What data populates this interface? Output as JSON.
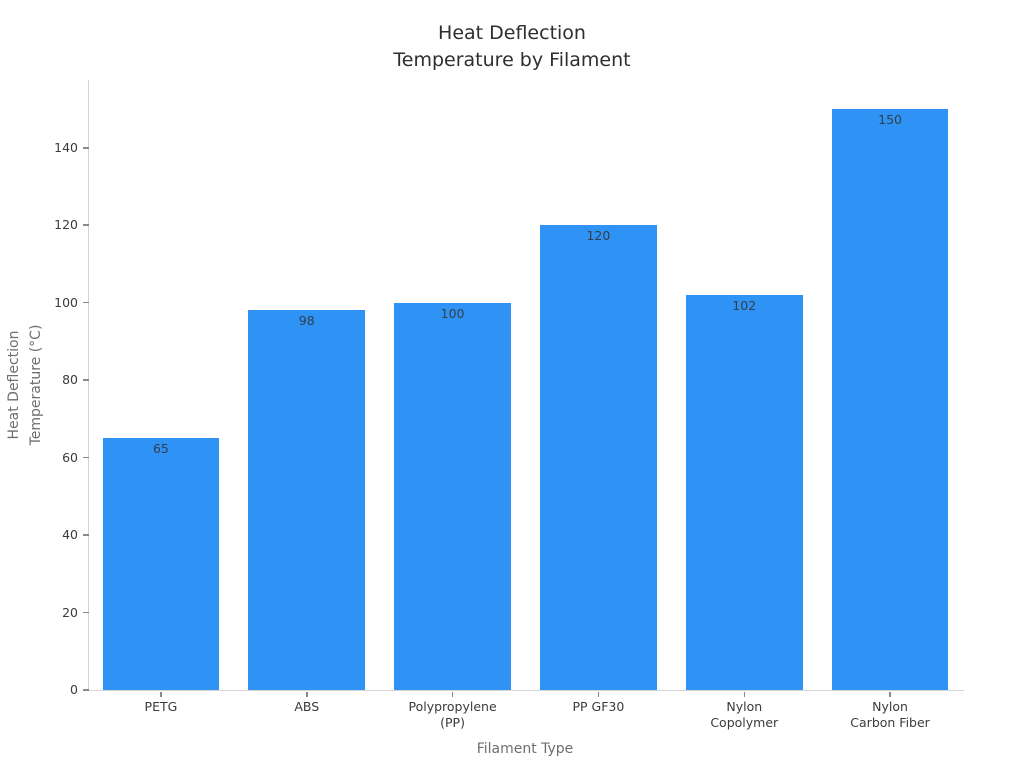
{
  "chart_data": {
    "type": "bar",
    "title": "Heat Deflection\nTemperature by Filament",
    "xlabel": "Filament Type",
    "ylabel": "Heat Deflection\nTemperature (°C)",
    "categories": [
      "PETG",
      "ABS",
      "Polypropylene\n(PP)",
      "PP GF30",
      "Nylon\nCopolymer",
      "Nylon\nCarbon Fiber"
    ],
    "values": [
      65,
      98,
      100,
      120,
      102,
      150
    ],
    "bar_value_labels": [
      "65",
      "98",
      "100",
      "120",
      "102",
      "150"
    ],
    "yticks": [
      0,
      20,
      40,
      60,
      80,
      100,
      120,
      140
    ],
    "ylim": [
      0,
      157.5
    ],
    "bar_width_fraction": 0.8,
    "grid": false,
    "legend": false,
    "colors": {
      "bar": "#2f92f5",
      "bar_label": "#333f49",
      "tick_label": "#3b3b3b",
      "tick_mark": "#8a8a8a",
      "spine": "#d4d4d4",
      "axis_title": "#6e6e6e",
      "title": "#2e2e2e",
      "background": "#ffffff"
    }
  }
}
